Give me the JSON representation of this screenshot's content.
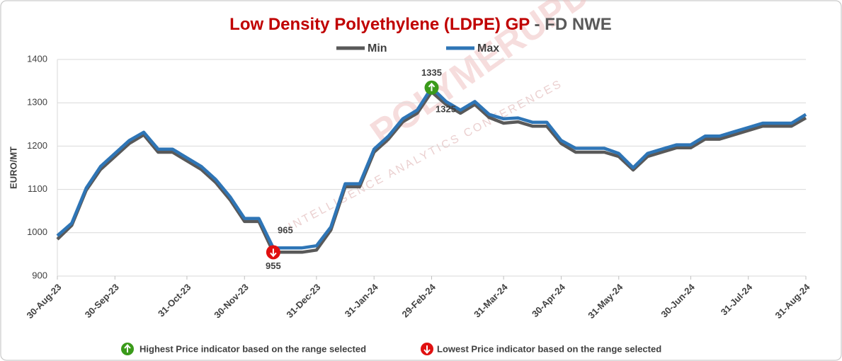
{
  "chart_data": {
    "type": "line",
    "title": "Low Density Polyethylene (LDPE) GP",
    "title_suffix": "- FD NWE",
    "y_label": "EURO/MT",
    "categories": [
      "30-Aug-23",
      null,
      null,
      null,
      "30-Sep-23",
      null,
      null,
      null,
      null,
      "31-Oct-23",
      null,
      null,
      null,
      "30-Nov-23",
      null,
      null,
      null,
      null,
      "31-Dec-23",
      null,
      null,
      null,
      "31-Jan-24",
      null,
      null,
      null,
      "29-Feb-24",
      null,
      null,
      null,
      null,
      "31-Mar-24",
      null,
      null,
      null,
      "30-Apr-24",
      null,
      null,
      null,
      "31-May-24",
      null,
      null,
      null,
      null,
      "30-Jun-24",
      null,
      null,
      null,
      "31-Jul-24",
      null,
      null,
      null,
      "31-Aug-24"
    ],
    "series": [
      {
        "name": "Min",
        "color": "#595959",
        "values": [
          985,
          1017,
          1098,
          1146,
          1176,
          1206,
          1226,
          1186,
          1186,
          1166,
          1146,
          1116,
          1076,
          1026,
          1026,
          955,
          955,
          955,
          960,
          1006,
          1106,
          1106,
          1186,
          1216,
          1256,
          1276,
          1325,
          1296,
          1276,
          1296,
          1266,
          1253,
          1256,
          1246,
          1246,
          1206,
          1186,
          1186,
          1186,
          1176,
          1145,
          1176,
          1186,
          1196,
          1196,
          1216,
          1216,
          1226,
          1236,
          1246,
          1246,
          1246,
          1265
        ]
      },
      {
        "name": "Max",
        "color": "#2e75b6",
        "values": [
          993,
          1022,
          1103,
          1153,
          1183,
          1213,
          1232,
          1193,
          1193,
          1173,
          1153,
          1123,
          1083,
          1033,
          1033,
          965,
          965,
          965,
          970,
          1013,
          1113,
          1113,
          1193,
          1223,
          1263,
          1283,
          1335,
          1303,
          1283,
          1303,
          1273,
          1263,
          1265,
          1255,
          1255,
          1213,
          1195,
          1195,
          1195,
          1183,
          1150,
          1183,
          1193,
          1203,
          1203,
          1223,
          1223,
          1233,
          1243,
          1253,
          1253,
          1253,
          1273
        ]
      }
    ],
    "ylim": [
      900,
      1400
    ],
    "yticks": [
      900,
      1000,
      1100,
      1200,
      1300,
      1400
    ],
    "grid": true,
    "legend": "top",
    "high_note": "Highest Price indicator based on the range selected",
    "low_note": "Lowest Price indicator based on the range selected",
    "watermark": "POLYMERUPDATE",
    "watermark_tagline": "INTELLIGENCE   ANALYTICS   CONFERENCES"
  }
}
